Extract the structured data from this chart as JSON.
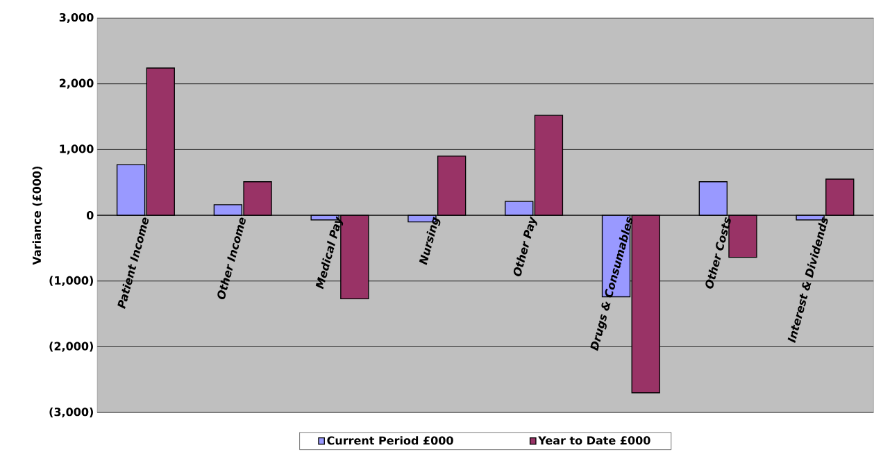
{
  "chart_data": {
    "type": "bar",
    "ylabel": "Variance (£000)",
    "categories": [
      "Patient Income",
      "Other Income",
      "Medical Pay",
      "Nursing",
      "Other Pay",
      "Drugs & Consumables",
      "Other Costs",
      "Interest & Dividends"
    ],
    "series": [
      {
        "name": "Current Period £000",
        "color": "#9999ff",
        "values": [
          770,
          160,
          -70,
          -100,
          210,
          -1240,
          510,
          -70
        ]
      },
      {
        "name": "Year to Date £000",
        "color": "#993366",
        "values": [
          2240,
          510,
          -1270,
          900,
          1520,
          -2700,
          -640,
          550
        ]
      }
    ],
    "ylim": [
      -3000,
      3000
    ],
    "yticks": [
      {
        "value": -3000,
        "label": "(3,000)"
      },
      {
        "value": -2000,
        "label": "(2,000)"
      },
      {
        "value": -1000,
        "label": "(1,000)"
      },
      {
        "value": 0,
        "label": "0"
      },
      {
        "value": 1000,
        "label": "1,000"
      },
      {
        "value": 2000,
        "label": "2,000"
      },
      {
        "value": 3000,
        "label": "3,000"
      }
    ],
    "grid": "y",
    "legend": "bottom"
  }
}
